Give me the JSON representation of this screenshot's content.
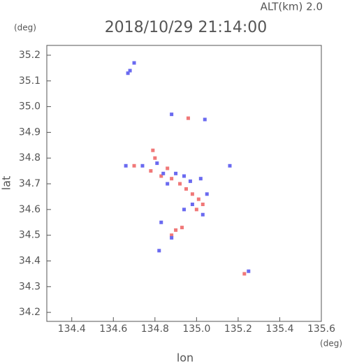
{
  "chart_data": {
    "type": "scatter",
    "title": "2018/10/29 21:14:00",
    "subtitle": "ALT(km) 2.0",
    "x_label": "lon",
    "y_label": "lat",
    "x_unit": "(deg)",
    "y_unit": "(deg)",
    "xlim": [
      134.28,
      135.6
    ],
    "ylim": [
      34.165,
      35.238
    ],
    "xticks": [
      134.4,
      134.6,
      134.8,
      {
        "value": 135,
        "label": "135.0"
      },
      135.2,
      135.4,
      135.6
    ],
    "yticks": [
      34.2,
      34.3,
      34.4,
      34.5,
      34.6,
      34.7,
      34.8,
      34.9,
      {
        "value": 35,
        "label": "35.0"
      },
      35.1,
      35.2
    ],
    "series": [
      {
        "color": "#f07878",
        "x": [
          134.96,
          134.7,
          134.78,
          134.8,
          134.83,
          134.88,
          134.92,
          134.98,
          135.01,
          135.0,
          135.03,
          134.9,
          134.93,
          134.88,
          135.23,
          134.86,
          134.95,
          134.79
        ],
        "values": [
          34.955,
          34.77,
          34.75,
          34.8,
          34.73,
          34.72,
          34.7,
          34.66,
          34.64,
          34.6,
          34.62,
          34.52,
          34.53,
          34.5,
          34.35,
          34.76,
          34.68,
          34.83
        ]
      },
      {
        "color": "#6a6af0",
        "x": [
          134.68,
          134.7,
          134.66,
          134.74,
          134.81,
          134.84,
          134.86,
          134.9,
          134.94,
          134.97,
          135.02,
          135.05,
          135.03,
          134.94,
          134.88,
          134.83,
          135.04,
          135.16,
          135.25,
          134.88,
          134.82,
          134.98,
          134.67
        ],
        "values": [
          35.14,
          35.17,
          34.77,
          34.77,
          34.78,
          34.74,
          34.7,
          34.74,
          34.73,
          34.71,
          34.72,
          34.66,
          34.58,
          34.6,
          34.49,
          34.55,
          34.95,
          34.77,
          34.36,
          34.97,
          34.44,
          34.62,
          35.13
        ]
      }
    ]
  }
}
